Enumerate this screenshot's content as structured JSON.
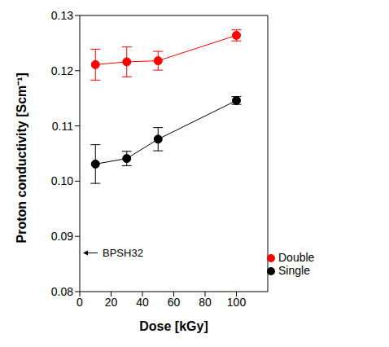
{
  "chart_data": {
    "type": "line",
    "x_label": "Dose [kGy]",
    "y_label": "Proton conductivity [Scm⁻¹]",
    "x": [
      10,
      30,
      50,
      100
    ],
    "series": [
      {
        "name": "Single",
        "color": "#000000",
        "marker": "circle",
        "values": [
          0.1031,
          0.1041,
          0.1076,
          0.1146
        ],
        "errors": [
          0.0035,
          0.0013,
          0.0021,
          0.0007
        ]
      },
      {
        "name": "Double",
        "color": "#ff0000",
        "marker": "circle",
        "values": [
          0.1211,
          0.1216,
          0.1218,
          0.1264
        ],
        "errors": [
          0.0028,
          0.0027,
          0.0017,
          0.001
        ]
      }
    ],
    "xlim": [
      0,
      120
    ],
    "xticks": [
      0,
      20,
      40,
      60,
      80,
      100
    ],
    "ylim": [
      0.08,
      0.13
    ],
    "yticks": [
      0.08,
      0.09,
      {
        "value": 0.1,
        "label": "0.10"
      },
      0.11,
      0.12,
      0.13
    ],
    "legend": "lower right",
    "annotations": [
      {
        "text": "BPSH32",
        "y": 0.087
      }
    ]
  }
}
